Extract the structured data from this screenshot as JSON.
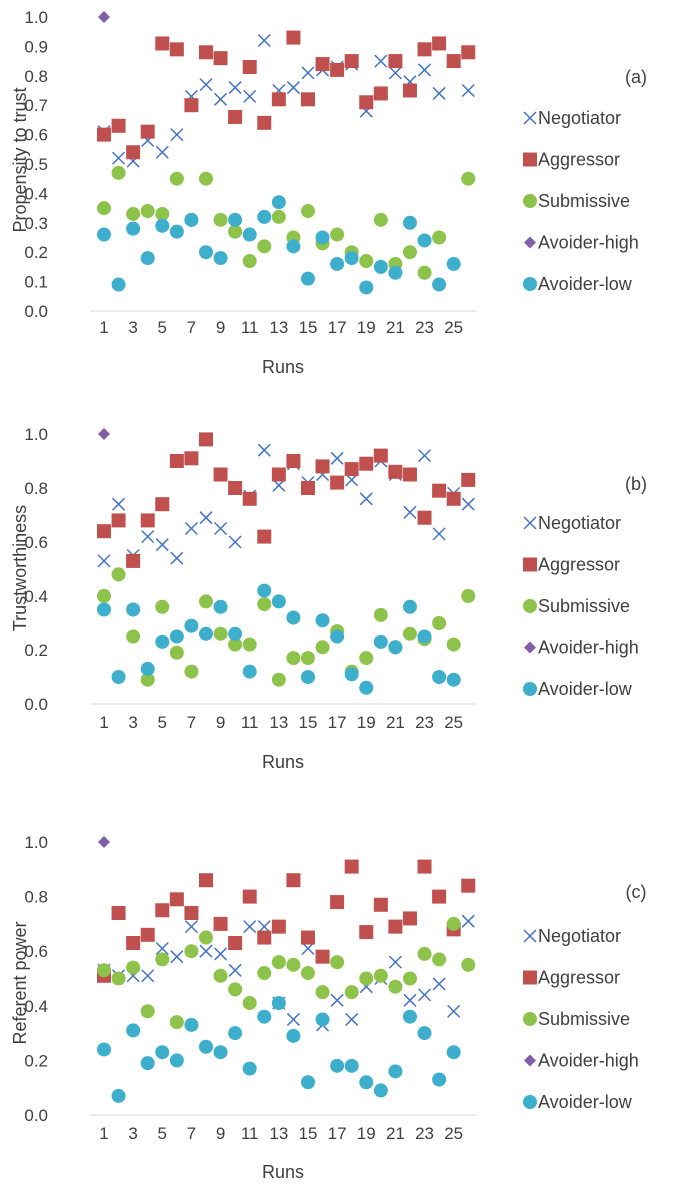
{
  "chart_data": [
    {
      "type": "scatter",
      "panel_label": "(a)",
      "ylabel": "Propensity to trust",
      "xlabel": "Runs",
      "ylim": [
        0,
        1
      ],
      "yticks": [
        "0.0",
        "0.1",
        "0.2",
        "0.3",
        "0.4",
        "0.5",
        "0.6",
        "0.7",
        "0.8",
        "0.9",
        "1.0"
      ],
      "xticks": [
        "1",
        "3",
        "5",
        "7",
        "9",
        "11",
        "13",
        "15",
        "17",
        "19",
        "21",
        "23",
        "25"
      ],
      "grid": false,
      "legend_position": "right",
      "series": [
        {
          "name": "Negotiator",
          "color": "#4472C4",
          "marker": "x",
          "x": [
            1,
            2,
            3,
            4,
            5,
            6,
            7,
            8,
            9,
            10,
            11,
            12,
            13,
            14,
            15,
            16,
            17,
            18,
            19,
            20,
            21,
            22,
            23,
            24,
            25,
            26
          ],
          "values": [
            0.61,
            0.52,
            0.51,
            0.58,
            0.54,
            0.6,
            0.73,
            0.77,
            0.72,
            0.76,
            0.73,
            0.92,
            0.75,
            0.76,
            0.81,
            0.82,
            0.83,
            0.84,
            0.68,
            0.85,
            0.81,
            0.78,
            0.82,
            0.74,
            null,
            0.75
          ]
        },
        {
          "name": "Aggressor",
          "color": "#C0504D",
          "marker": "square",
          "x": [
            1,
            2,
            3,
            4,
            5,
            6,
            7,
            8,
            9,
            10,
            11,
            12,
            13,
            14,
            15,
            16,
            17,
            18,
            19,
            20,
            21,
            22,
            23,
            24,
            25,
            26
          ],
          "values": [
            0.6,
            0.63,
            0.54,
            0.61,
            0.91,
            0.89,
            0.7,
            0.88,
            0.86,
            0.66,
            0.83,
            0.64,
            0.72,
            0.93,
            0.72,
            0.84,
            0.82,
            0.85,
            0.71,
            0.74,
            0.85,
            0.75,
            0.89,
            0.91,
            0.85,
            0.88
          ]
        },
        {
          "name": "Submissive",
          "color": "#8DC34A",
          "marker": "circle",
          "x": [
            1,
            2,
            3,
            4,
            5,
            6,
            7,
            8,
            9,
            10,
            11,
            12,
            13,
            14,
            15,
            16,
            17,
            18,
            19,
            20,
            21,
            22,
            23,
            24,
            25,
            26
          ],
          "values": [
            0.35,
            0.47,
            0.33,
            0.34,
            0.33,
            0.45,
            0.31,
            0.45,
            0.31,
            0.27,
            0.17,
            0.22,
            0.32,
            0.25,
            0.34,
            0.23,
            0.26,
            0.2,
            0.17,
            0.31,
            0.16,
            0.2,
            0.13,
            0.25,
            null,
            0.45
          ]
        },
        {
          "name": "Avoider-high",
          "color": "#7F5FA8",
          "marker": "diamond",
          "x": [
            1
          ],
          "values": [
            1.0
          ]
        },
        {
          "name": "Avoider-low",
          "color": "#3DAECB",
          "marker": "circle",
          "x": [
            1,
            2,
            3,
            4,
            5,
            6,
            7,
            8,
            9,
            10,
            11,
            12,
            13,
            14,
            15,
            16,
            17,
            18,
            19,
            20,
            21,
            22,
            23,
            24,
            25,
            26
          ],
          "values": [
            0.26,
            0.09,
            0.28,
            0.18,
            0.29,
            0.27,
            0.31,
            0.2,
            0.18,
            0.31,
            0.26,
            0.32,
            0.37,
            0.22,
            0.11,
            0.25,
            0.16,
            0.18,
            0.08,
            0.15,
            0.13,
            0.3,
            0.24,
            0.09,
            0.16,
            null
          ]
        }
      ]
    },
    {
      "type": "scatter",
      "panel_label": "(b)",
      "ylabel": "Trustworthiness",
      "xlabel": "Runs",
      "ylim": [
        0,
        1
      ],
      "yticks": [
        "0.0",
        "0.2",
        "0.4",
        "0.6",
        "0.8",
        "1.0"
      ],
      "xticks": [
        "1",
        "3",
        "5",
        "7",
        "9",
        "11",
        "13",
        "15",
        "17",
        "19",
        "21",
        "23",
        "25"
      ],
      "grid": false,
      "legend_position": "right",
      "series": [
        {
          "name": "Negotiator",
          "color": "#4472C4",
          "marker": "x",
          "x": [
            1,
            2,
            3,
            4,
            5,
            6,
            7,
            8,
            9,
            10,
            11,
            12,
            13,
            14,
            15,
            16,
            17,
            18,
            19,
            20,
            21,
            22,
            23,
            24,
            25,
            26
          ],
          "values": [
            0.53,
            0.74,
            0.55,
            0.62,
            0.59,
            0.54,
            0.65,
            0.69,
            0.65,
            0.6,
            0.77,
            0.94,
            0.81,
            0.89,
            0.82,
            0.85,
            0.91,
            0.83,
            0.76,
            0.9,
            0.85,
            0.71,
            0.92,
            0.63,
            0.78,
            0.74
          ]
        },
        {
          "name": "Aggressor",
          "color": "#C0504D",
          "marker": "square",
          "x": [
            1,
            2,
            3,
            4,
            5,
            6,
            7,
            8,
            9,
            10,
            11,
            12,
            13,
            14,
            15,
            16,
            17,
            18,
            19,
            20,
            21,
            22,
            23,
            24,
            25,
            26
          ],
          "values": [
            0.64,
            0.68,
            0.53,
            0.68,
            0.74,
            0.9,
            0.91,
            0.98,
            0.85,
            0.8,
            0.76,
            0.62,
            0.85,
            0.9,
            0.8,
            0.88,
            0.82,
            0.87,
            0.89,
            0.92,
            0.86,
            0.85,
            0.69,
            0.79,
            0.76,
            0.83
          ]
        },
        {
          "name": "Submissive",
          "color": "#8DC34A",
          "marker": "circle",
          "x": [
            1,
            2,
            3,
            4,
            5,
            6,
            7,
            8,
            9,
            10,
            11,
            12,
            13,
            14,
            15,
            16,
            17,
            18,
            19,
            20,
            21,
            22,
            23,
            24,
            25,
            26
          ],
          "values": [
            0.4,
            0.48,
            0.25,
            0.09,
            0.36,
            0.19,
            0.12,
            0.38,
            0.26,
            0.22,
            0.22,
            0.37,
            0.09,
            0.17,
            0.17,
            0.21,
            0.27,
            0.12,
            0.17,
            0.33,
            0.21,
            0.26,
            0.24,
            0.3,
            0.22,
            0.4
          ]
        },
        {
          "name": "Avoider-high",
          "color": "#7F5FA8",
          "marker": "diamond",
          "x": [
            1
          ],
          "values": [
            1.0
          ]
        },
        {
          "name": "Avoider-low",
          "color": "#3DAECB",
          "marker": "circle",
          "x": [
            1,
            2,
            3,
            4,
            5,
            6,
            7,
            8,
            9,
            10,
            11,
            12,
            13,
            14,
            15,
            16,
            17,
            18,
            19,
            20,
            21,
            22,
            23,
            24,
            25,
            26
          ],
          "values": [
            0.35,
            0.1,
            0.35,
            0.13,
            0.23,
            0.25,
            0.29,
            0.26,
            0.36,
            0.26,
            0.12,
            0.42,
            0.38,
            0.32,
            0.1,
            0.31,
            0.25,
            0.11,
            0.06,
            0.23,
            0.21,
            0.36,
            0.25,
            0.1,
            0.09,
            null
          ]
        }
      ]
    },
    {
      "type": "scatter",
      "panel_label": "(c)",
      "ylabel": "Referent power",
      "xlabel": "Runs",
      "ylim": [
        0,
        1
      ],
      "yticks": [
        "0.0",
        "0.2",
        "0.4",
        "0.6",
        "0.8",
        "1.0"
      ],
      "xticks": [
        "1",
        "3",
        "5",
        "7",
        "9",
        "11",
        "13",
        "15",
        "17",
        "19",
        "21",
        "23",
        "25"
      ],
      "grid": false,
      "legend_position": "right",
      "series": [
        {
          "name": "Negotiator",
          "color": "#4472C4",
          "marker": "x",
          "x": [
            1,
            2,
            3,
            4,
            5,
            6,
            7,
            8,
            9,
            10,
            11,
            12,
            13,
            14,
            15,
            16,
            17,
            18,
            19,
            20,
            21,
            22,
            23,
            24,
            25,
            26
          ],
          "values": [
            0.53,
            0.51,
            0.51,
            0.51,
            0.61,
            0.58,
            0.69,
            0.6,
            0.59,
            0.53,
            0.69,
            0.69,
            0.41,
            0.35,
            0.61,
            0.33,
            0.42,
            0.35,
            0.47,
            0.5,
            0.56,
            0.42,
            0.44,
            0.48,
            0.38,
            0.71
          ]
        },
        {
          "name": "Aggressor",
          "color": "#C0504D",
          "marker": "square",
          "x": [
            1,
            2,
            3,
            4,
            5,
            6,
            7,
            8,
            9,
            10,
            11,
            12,
            13,
            14,
            15,
            16,
            17,
            18,
            19,
            20,
            21,
            22,
            23,
            24,
            25,
            26
          ],
          "values": [
            0.51,
            0.74,
            0.63,
            0.66,
            0.75,
            0.79,
            0.74,
            0.86,
            0.7,
            0.63,
            0.8,
            0.65,
            0.69,
            0.86,
            0.65,
            0.58,
            0.78,
            0.91,
            0.67,
            0.77,
            0.69,
            0.72,
            0.91,
            0.8,
            0.68,
            0.84
          ]
        },
        {
          "name": "Submissive",
          "color": "#8DC34A",
          "marker": "circle",
          "x": [
            1,
            2,
            3,
            4,
            5,
            6,
            7,
            8,
            9,
            10,
            11,
            12,
            13,
            14,
            15,
            16,
            17,
            18,
            19,
            20,
            21,
            22,
            23,
            24,
            25,
            26
          ],
          "values": [
            0.53,
            0.5,
            0.54,
            0.38,
            0.57,
            0.34,
            0.6,
            0.65,
            0.51,
            0.46,
            0.41,
            0.52,
            0.56,
            0.55,
            0.52,
            0.45,
            0.56,
            0.45,
            0.5,
            0.51,
            0.47,
            0.5,
            0.59,
            0.57,
            0.7,
            0.55
          ]
        },
        {
          "name": "Avoider-high",
          "color": "#7F5FA8",
          "marker": "diamond",
          "x": [
            1
          ],
          "values": [
            1.0
          ]
        },
        {
          "name": "Avoider-low",
          "color": "#3DAECB",
          "marker": "circle",
          "x": [
            1,
            2,
            3,
            4,
            5,
            6,
            7,
            8,
            9,
            10,
            11,
            12,
            13,
            14,
            15,
            16,
            17,
            18,
            19,
            20,
            21,
            22,
            23,
            24,
            25,
            26
          ],
          "values": [
            0.24,
            0.07,
            0.31,
            0.19,
            0.23,
            0.2,
            0.33,
            0.25,
            0.23,
            0.3,
            0.17,
            0.36,
            0.41,
            0.29,
            0.12,
            0.35,
            0.18,
            0.18,
            0.12,
            0.09,
            0.16,
            0.36,
            0.3,
            0.13,
            0.23,
            null
          ]
        }
      ]
    }
  ]
}
